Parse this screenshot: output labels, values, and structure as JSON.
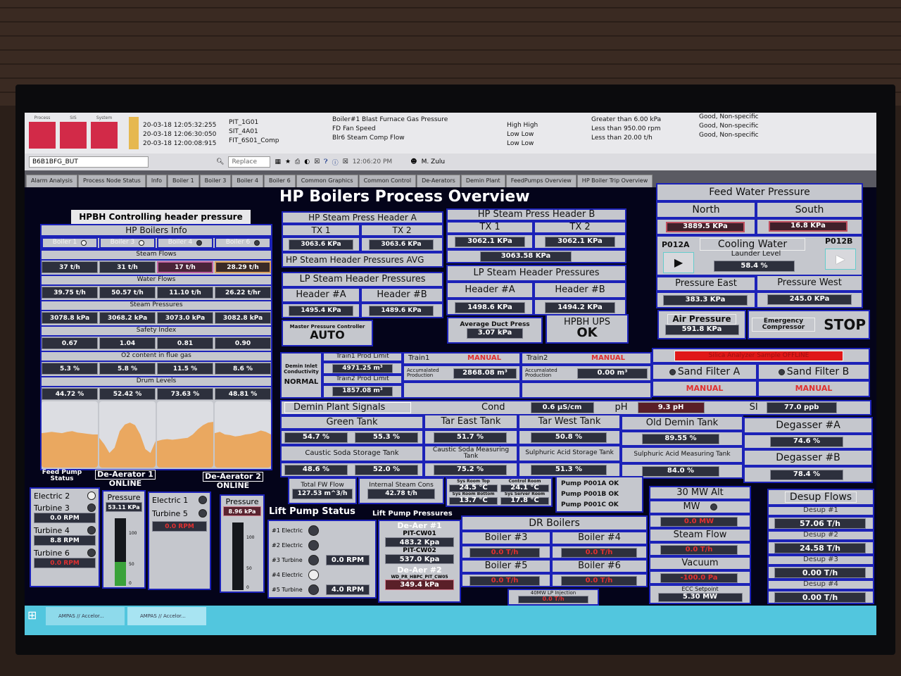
{
  "alarm_summary": [
    {
      "label": "Process"
    },
    {
      "label": "SIS"
    },
    {
      "label": "System"
    }
  ],
  "alarm_list": [
    {
      "time": "20-03-18 12:05:32:255",
      "tag": "PIT_1G01",
      "description": "Boiler#1 Blast Furnace Gas Pressure",
      "type": "High High",
      "limit": "Greater than  6.00 kPa",
      "quality": "Good, Non-specific"
    },
    {
      "time": "20-03-18 12:06:30:050",
      "tag": "SIT_4A01",
      "description": "FD Fan Speed",
      "type": "Low Low",
      "limit": "Less than 950.00 rpm",
      "quality": "Good, Non-specific"
    },
    {
      "time": "20-03-18 12:00:08:915",
      "tag": "FIT_6S01_Comp",
      "description": "Blr6 Steam Comp Flow",
      "type": "Low Low",
      "limit": "Less than 20.00 t/h",
      "quality": "Good, Non-specific"
    }
  ],
  "toolbar": {
    "tag_select": "B6B1BFG_BUT",
    "search_mode": "Replace",
    "clock": "12:06:20 PM",
    "user": "M. Zulu"
  },
  "tabs": [
    "Alarm Analysis",
    "Process Node Status",
    "Info",
    "Boiler 1",
    "Boiler 3",
    "Boiler 4",
    "Boiler 6",
    "Common Graphics",
    "Common Control",
    "De-Aerators",
    "Demin Plant",
    "FeedPumps Overview",
    "HP Boiler Trip Overview"
  ],
  "page_title": "HP Boilers Process Overview",
  "left": {
    "title": "HPBH Controlling header pressure",
    "info": "HP Boilers Info",
    "boilers": [
      {
        "label": "Boiler 1",
        "on": false
      },
      {
        "label": "Boiler 3",
        "on": false
      },
      {
        "label": "Boiler 4",
        "on": true
      },
      {
        "label": "Boiler 6",
        "on": true
      }
    ],
    "steam_flows_label": "Steam Flows",
    "steam_flows": [
      "37 t/h",
      "31 t/h",
      "17 t/h",
      "28.29 t/h"
    ],
    "water_flows_label": "Water Flows",
    "water_flows": [
      "39.75 t/h",
      "50.57 t/h",
      "11.10 t/h",
      "26.22 t/hr"
    ],
    "steam_pressures_label": "Steam Pressures",
    "steam_pressures": [
      "3078.8 kPa",
      "3068.2 kPa",
      "3073.0 kPa",
      "3082.8 kPa"
    ],
    "safety_label": "Safety Index",
    "safety": [
      "0.67",
      "1.04",
      "0.81",
      "0.90"
    ],
    "o2_label": "O2 content in flue gas",
    "o2": [
      "5.3 %",
      "5.8 %",
      "11.5 %",
      "8.6 %"
    ],
    "drum_label": "Drum Levels",
    "drum": [
      "44.72 %",
      "52.42 %",
      "73.63 %",
      "48.81 %"
    ],
    "drum_trends": [
      [
        52,
        53,
        54,
        53,
        52,
        54,
        55,
        53,
        52,
        51,
        50,
        50
      ],
      [
        45,
        35,
        22,
        30,
        55,
        65,
        68,
        64,
        50,
        28,
        22,
        40
      ],
      [
        40,
        42,
        43,
        42,
        43,
        44,
        45,
        50,
        58,
        64,
        68,
        69
      ],
      [
        52,
        54,
        50,
        49,
        47,
        48,
        50,
        51,
        53,
        56,
        54,
        50
      ]
    ],
    "fill_color": "#eaa860"
  },
  "feedpump": {
    "status_label": "Feed Pump Status",
    "da1_title": "De-Aerator 1",
    "da1_state": "ONLINE",
    "da2_title": "De-Aerator 2",
    "da2_state": "ONLINE",
    "electric2": "Electric 2",
    "turbine3": "Turbine 3",
    "turbine3_rpm": "0.0 RPM",
    "turbine4": "Turbine 4",
    "turbine4_rpm": "8.8 RPM",
    "turbine6": "Turbine 6",
    "turbine6_rpm": "0.0 RPM",
    "pressure_label": "Pressure",
    "da1_pressure": "53.11 KPa",
    "da1_level_pct": 35,
    "electric1": "Electric 1",
    "turbine5": "Turbine 5",
    "turbine5_rpm": "0.0 RPM",
    "da2_pressure": "8.96 kPa",
    "da2_level_pct": 0,
    "scale": [
      "100",
      "50",
      "0"
    ]
  },
  "header_a": {
    "title": "HP Steam Press Header A",
    "tx1": "TX 1",
    "tx2": "TX 2",
    "tx1_val": "3063.6 KPa",
    "tx2_val": "3063.6 KPa"
  },
  "header_b": {
    "title": "HP Steam Press Header B",
    "tx1": "TX 1",
    "tx2": "TX 2",
    "tx1_val": "3062.1 KPa",
    "tx2_val": "3062.1 KPa",
    "avg_val": "3063.58 KPa"
  },
  "avg_label": "HP Steam Header Pressures AVG",
  "lp_left": {
    "title": "LP Steam Header Pressures",
    "a": "Header #A",
    "b": "Header #B",
    "a_val": "1495.4 KPa",
    "b_val": "1489.6 KPa"
  },
  "lp_right": {
    "title": "LP Steam Header Pressures",
    "a": "Header #A",
    "b": "Header #B",
    "a_val": "1498.6 KPa",
    "b_val": "1494.2 KPa"
  },
  "master": {
    "label": "Master Pressure Controller",
    "value": "AUTO"
  },
  "duct": {
    "label": "Average Duct Press",
    "value": "3.07 kPa"
  },
  "ups": {
    "label": "HPBH UPS",
    "value": "OK"
  },
  "demin": {
    "inlet_label": "Demin Inlet Conductivity",
    "inlet_value": "NORMAL",
    "t1_limit_label": "Train1 Prod Limit",
    "t1_limit": "4971.25 m³",
    "t2_limit_label": "Train2 Prod Limit",
    "t2_limit": "1857.08 m³",
    "train1": "Train1",
    "train1_mode": "MANUAL",
    "train2": "Train2",
    "train2_mode": "MANUAL",
    "acc_label": "Accumalated Production",
    "train1_acc": "2868.08 m³",
    "train2_acc": "0.00 m³",
    "silica": "Silica Analyzer Sample OFFLINE",
    "sand_a": "Sand Filter A",
    "sand_b": "Sand Filter B",
    "sand_a_mode": "MANUAL",
    "sand_b_mode": "MANUAL"
  },
  "signals": {
    "label": "Demin Plant Signals",
    "cond_label": "Cond",
    "cond": "0.6 µS/cm",
    "ph_label": "pH",
    "ph": "9.3 pH",
    "si_label": "SI",
    "si": "77.0 ppb"
  },
  "tanks": {
    "green": "Green Tank",
    "green_vals": [
      "54.7 %",
      "55.3 %"
    ],
    "tar_east": "Tar East Tank",
    "tar_east_val": "51.7 %",
    "tar_west": "Tar West Tank",
    "tar_west_val": "50.8 %",
    "old_demin": "Old Demin Tank",
    "old_demin_val": "89.55 %",
    "caustic_storage": "Caustic Soda Storage Tank",
    "caustic_storage_vals": [
      "48.6 %",
      "52.0 %"
    ],
    "caustic_measuring": "Caustic Soda Measuring Tank",
    "caustic_measuring_val": "75.2 %",
    "sulphuric_storage": "Sulphuric Acid Storage Tank",
    "sulphuric_storage_val": "51.3 %",
    "sulphuric_measuring": "Sulphuric Acid Measuring Tank",
    "sulphuric_measuring_val": "84.0 %",
    "degasser_a": "Degasser #A",
    "degasser_a_val": "74.6 %",
    "degasser_b": "Degasser #B",
    "degasser_b_val": "78.4 %"
  },
  "misc": {
    "fw_label": "Total FW Flow",
    "fw": "127.53 m^3/h",
    "isc_label": "Internal Steam Cons",
    "isc": "42.78 t/h",
    "srt_label": "Sys Room Top",
    "srt": "24.5 °C",
    "cr_label": "Control Room",
    "cr": "24.1 °C",
    "srb_label": "Sys Room Bottom",
    "srb": "13.7 °C",
    "ssr_label": "Sys Server Room",
    "ssr": "17.8 °C",
    "pumps": [
      "Pump P001A OK",
      "Pump P001B OK",
      "Pump P001C OK"
    ]
  },
  "lift": {
    "status_title": "Lift Pump Status",
    "pressures_title": "Lift Pump Pressures",
    "pumps": [
      {
        "label": "#1 Electric",
        "on": false,
        "rpm": ""
      },
      {
        "label": "#2 Electric",
        "on": false,
        "rpm": ""
      },
      {
        "label": "#3 Turbine",
        "on": false,
        "rpm": "0.0 RPM"
      },
      {
        "label": "#4 Electric",
        "on": true,
        "rpm": ""
      },
      {
        "label": "#5 Turbine",
        "on": false,
        "rpm": "4.0 RPM"
      }
    ],
    "deaer1": "De-Aer #1",
    "cw01": "PIT-CW01",
    "cw01_val": "483.2 Kpa",
    "cw02": "PIT-CW02",
    "cw02_val": "537.0 Kpa",
    "deaer2": "De-Aer #2",
    "cw05": "WD_PR_HBPC_PIT_CW05",
    "cw05_val": "349.4 kPa"
  },
  "dr": {
    "title": "DR Boilers",
    "b3": "Boiler #3",
    "b3_val": "0.0 T/h",
    "b4": "Boiler #4",
    "b4_val": "0.0 T/h",
    "b5": "Boiler #5",
    "b5_val": "0.0 T/h",
    "b6": "Boiler #6",
    "b6_val": "0.0 T/h",
    "lp_label": "40MW LP Injection",
    "lp_val": "0.0 T/h"
  },
  "fwp": {
    "title": "Feed Water Pressure",
    "north": "North",
    "south": "South",
    "north_val": "3889.5 KPa",
    "south_val": "16.8 KPa",
    "p012a": "P012A",
    "p012b": "P012B",
    "cooling": "Cooling Water",
    "launder": "Launder Level",
    "launder_val": "58.4 %",
    "east": "Pressure East",
    "west": "Pressure West",
    "east_val": "383.3 KPa",
    "west_val": "245.0 KPa",
    "air": "Air Pressure",
    "air_val": "591.8 KPa",
    "emerg": "Emergency Compressor",
    "stop": "STOP"
  },
  "alt": {
    "title": "30 MW Alt",
    "mw": "MW",
    "mw_val": "0.0 MW",
    "steam": "Steam Flow",
    "steam_val": "0.0 T/h",
    "vac": "Vacuum",
    "vac_val": "-100.0 Pa",
    "ecc": "ECC Setpoint",
    "ecc_val": "5.30 MW"
  },
  "desup": {
    "title": "Desup Flows",
    "items": [
      {
        "label": "Desup #1",
        "val": "57.06 T/h"
      },
      {
        "label": "Desup #2",
        "val": "24.58 T/h"
      },
      {
        "label": "Desup #3",
        "val": "0.00 T/h"
      },
      {
        "label": "Desup #4",
        "val": "0.00 T/h"
      }
    ]
  },
  "taskbar": {
    "items": [
      "AMPAS // Accelor...",
      "AMPAS // Accelor..."
    ]
  }
}
